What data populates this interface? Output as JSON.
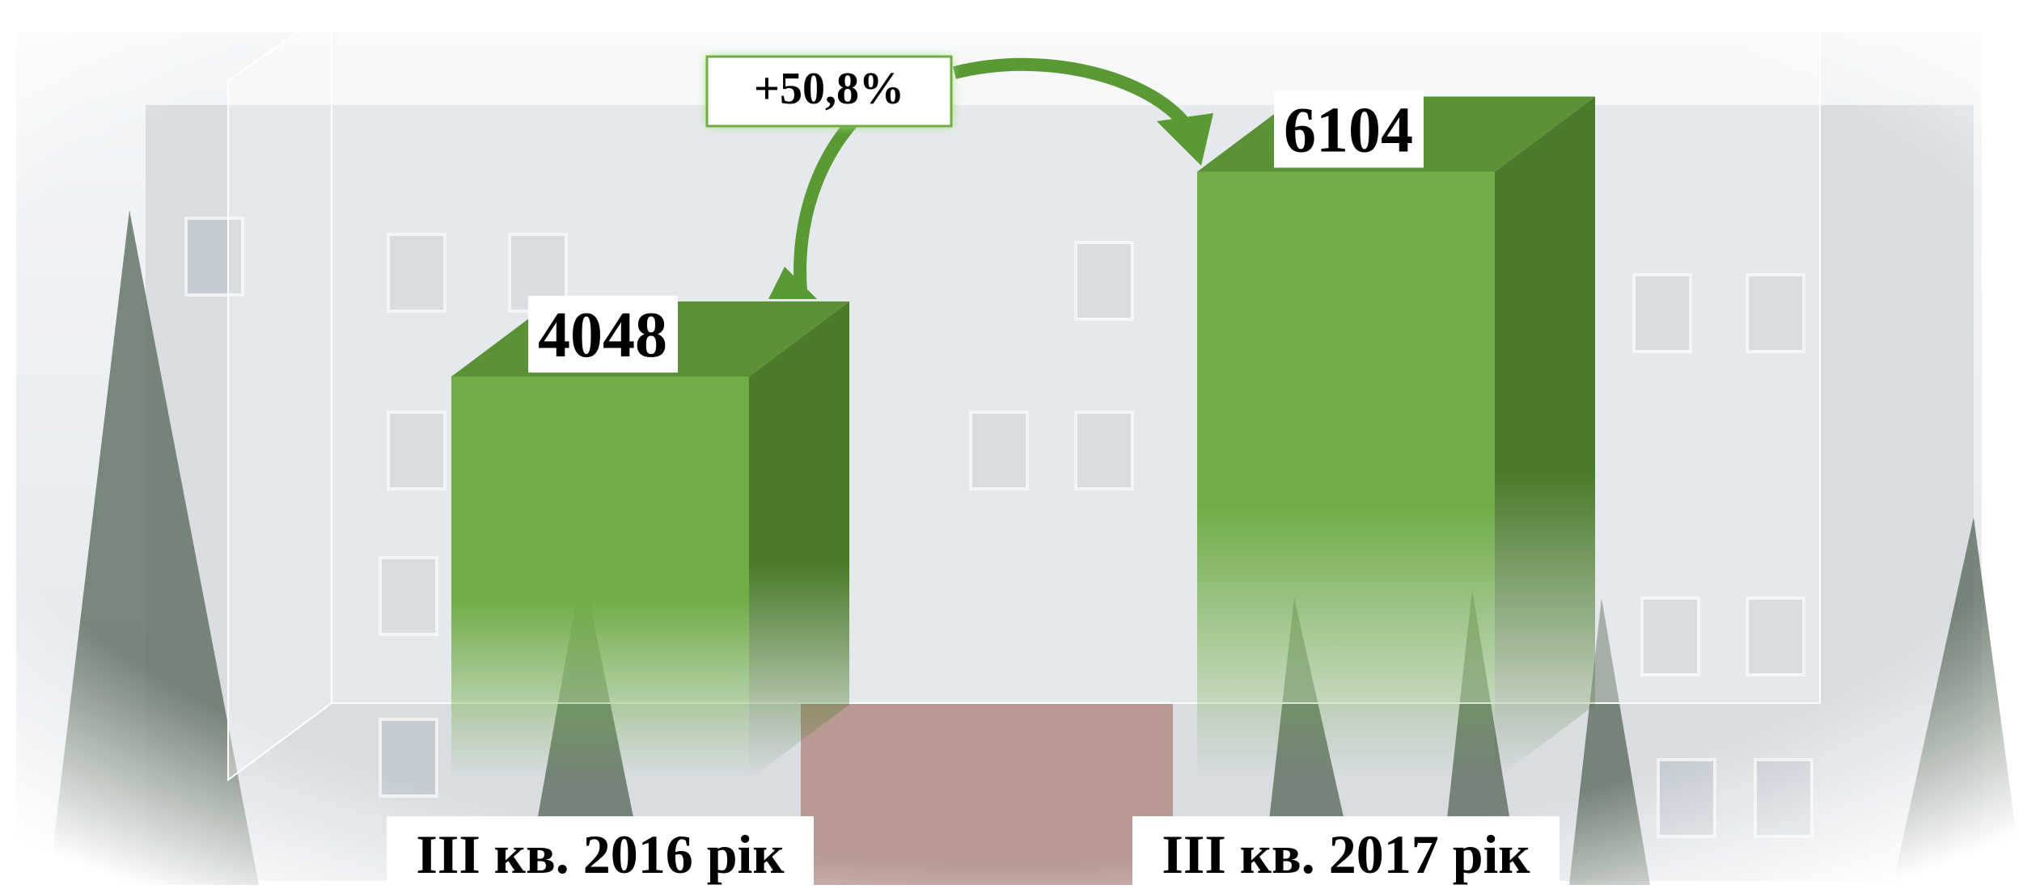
{
  "chart_data": {
    "type": "bar3d",
    "categories": [
      "III кв. 2016 рік",
      "III кв. 2017 рік"
    ],
    "values": [
      4048,
      6104
    ],
    "color": "#70ad47",
    "ylim": [
      0,
      7000
    ],
    "annotation": "+50,8%"
  }
}
